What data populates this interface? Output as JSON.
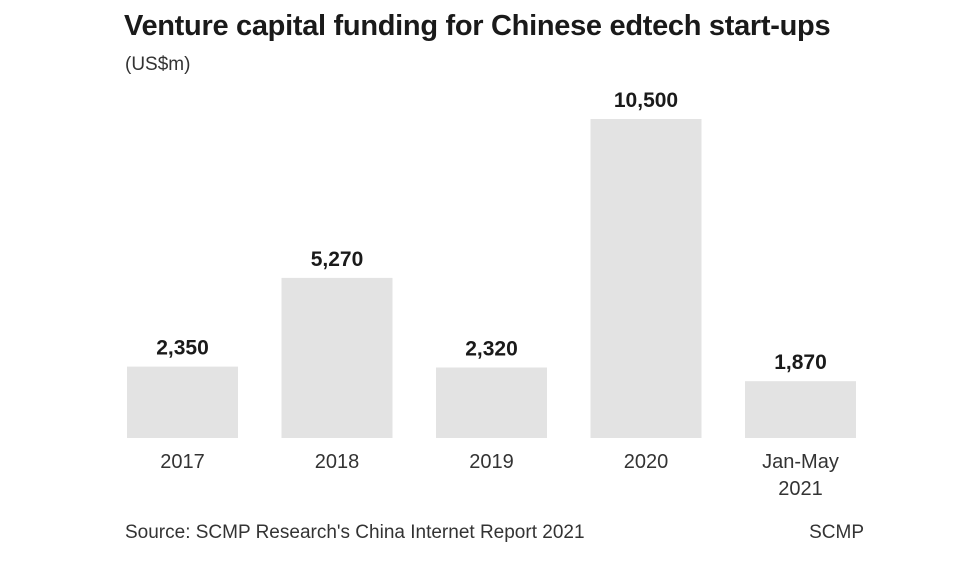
{
  "chart_data": {
    "type": "bar",
    "title": "Venture capital funding for Chinese edtech start-ups",
    "subtitle": "(US$m)",
    "categories": [
      "2017",
      "2018",
      "2019",
      "2020",
      "Jan-May\n2021"
    ],
    "values": [
      2350,
      5270,
      2320,
      10500,
      1870
    ],
    "value_labels": [
      "2,350",
      "5,270",
      "2,320",
      "10,500",
      "1,870"
    ],
    "ylim": [
      0,
      10500
    ],
    "grid": false,
    "xlabel": "",
    "ylabel": ""
  },
  "footer": {
    "source": "Source: SCMP Research's China Internet Report 2021",
    "brand": "SCMP"
  },
  "colors": {
    "bar": "#e3e3e3",
    "text": "#1a1a1a"
  }
}
